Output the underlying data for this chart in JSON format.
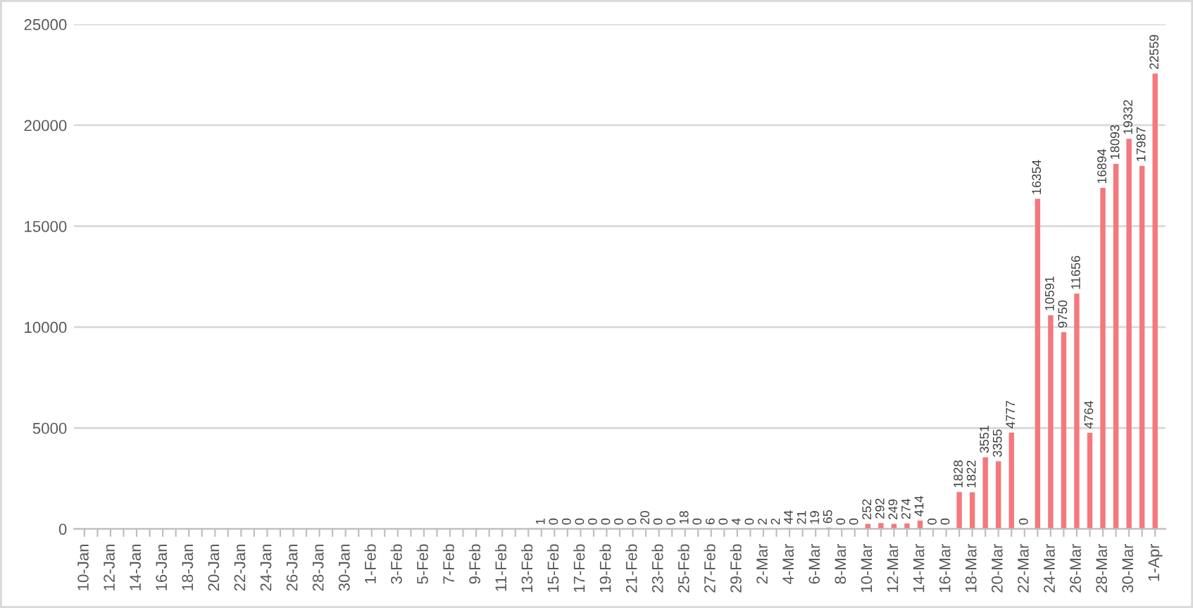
{
  "chart_data": {
    "type": "bar",
    "categories": [
      "10-Jan",
      null,
      "12-Jan",
      null,
      "14-Jan",
      null,
      "16-Jan",
      null,
      "18-Jan",
      null,
      "20-Jan",
      null,
      "22-Jan",
      null,
      "24-Jan",
      null,
      "26-Jan",
      null,
      "28-Jan",
      null,
      "30-Jan",
      null,
      "1-Feb",
      null,
      "3-Feb",
      null,
      "5-Feb",
      null,
      "7-Feb",
      null,
      "9-Feb",
      null,
      "11-Feb",
      null,
      "13-Feb",
      null,
      "15-Feb",
      null,
      "17-Feb",
      null,
      "19-Feb",
      null,
      "21-Feb",
      null,
      "23-Feb",
      null,
      "25-Feb",
      null,
      "27-Feb",
      null,
      "29-Feb",
      null,
      "2-Mar",
      null,
      "4-Mar",
      null,
      "6-Mar",
      null,
      "8-Mar",
      null,
      "10-Mar",
      null,
      "12-Mar",
      null,
      "14-Mar",
      null,
      "16-Mar",
      null,
      "18-Mar",
      null,
      "20-Mar",
      null,
      "22-Mar",
      null,
      "24-Mar",
      null,
      "26-Mar",
      null,
      "28-Mar",
      null,
      "30-Mar",
      null,
      "1-Apr"
    ],
    "values": [
      null,
      null,
      null,
      null,
      null,
      null,
      null,
      null,
      null,
      null,
      null,
      null,
      null,
      null,
      null,
      null,
      null,
      null,
      null,
      null,
      null,
      null,
      null,
      null,
      null,
      null,
      null,
      null,
      null,
      null,
      null,
      null,
      null,
      null,
      null,
      1,
      0,
      0,
      0,
      0,
      0,
      0,
      0,
      20,
      0,
      0,
      18,
      0,
      6,
      0,
      4,
      0,
      2,
      2,
      44,
      21,
      19,
      65,
      0,
      0,
      252,
      292,
      249,
      274,
      414,
      0,
      0,
      1828,
      1822,
      3551,
      3355,
      4777,
      0,
      16354,
      10591,
      9750,
      11656,
      4764,
      16894,
      18093,
      19332,
      17987,
      22559
    ],
    "color": "#f4787c",
    "ylim": [
      0,
      25000
    ],
    "yticks": [
      0,
      5000,
      10000,
      15000,
      20000,
      25000
    ],
    "grid": "y",
    "data_labels": true
  }
}
